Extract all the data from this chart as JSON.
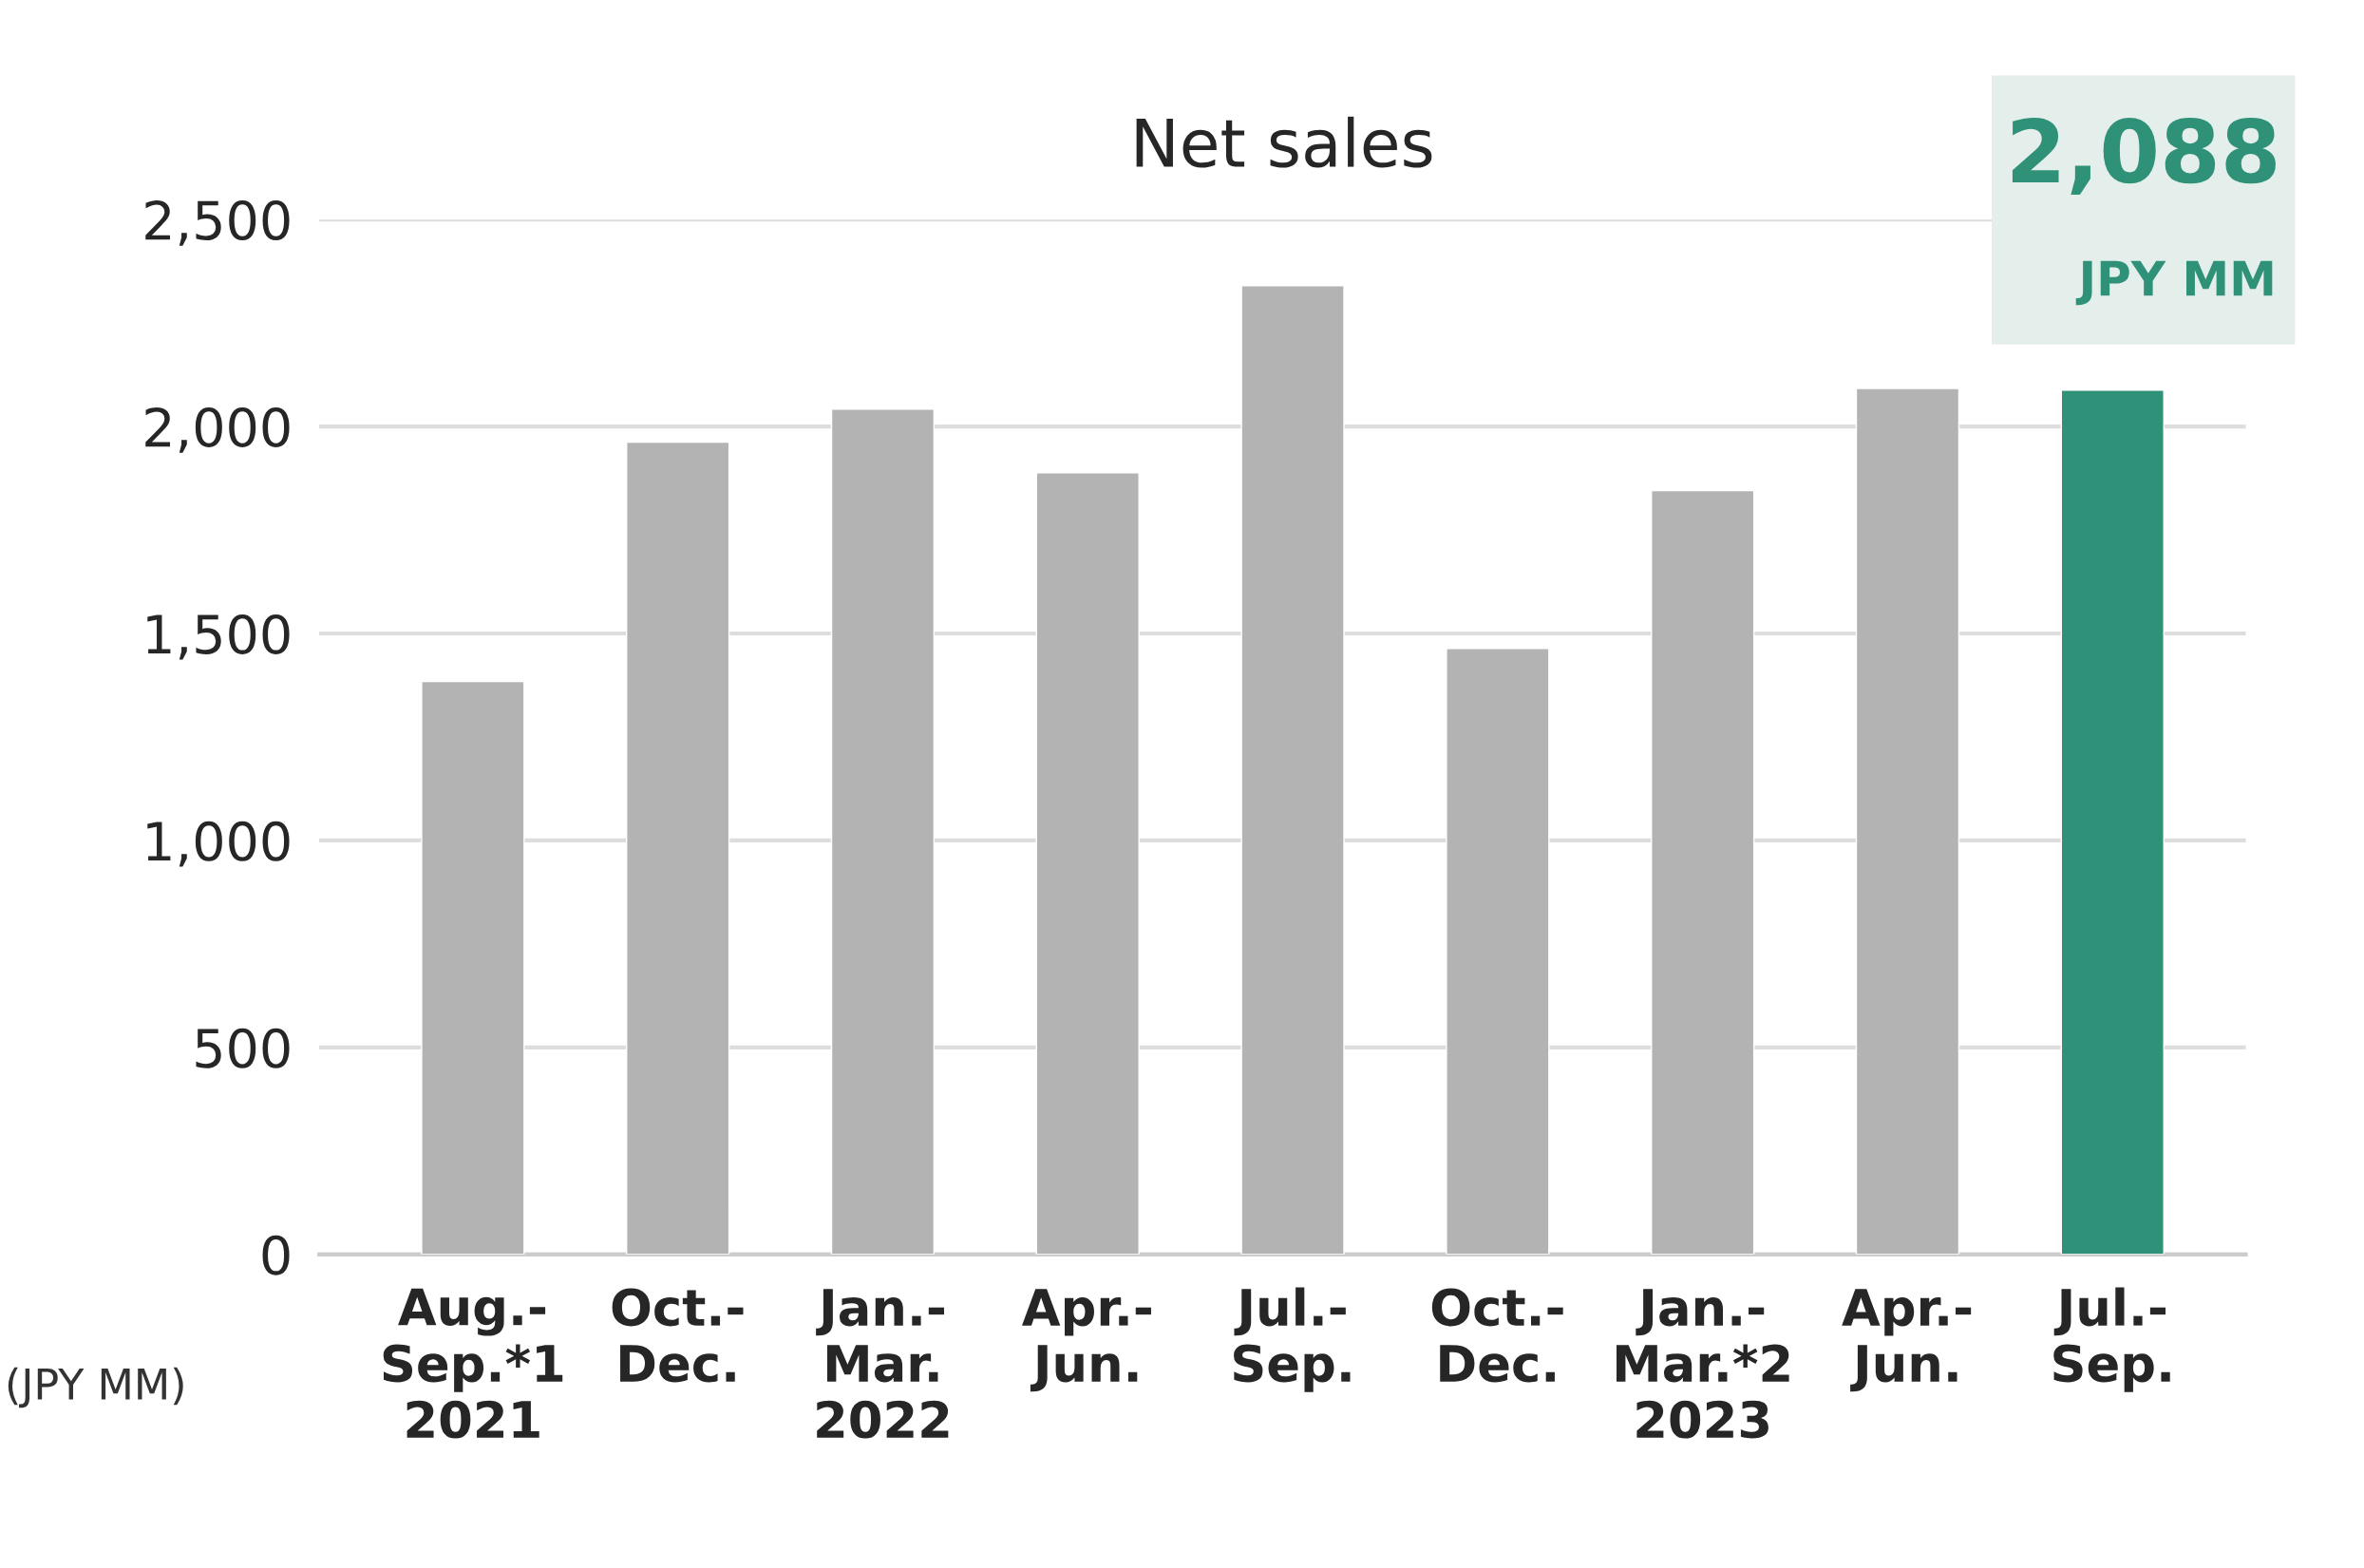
{
  "chart_data": {
    "type": "bar",
    "title": "Net sales",
    "ylabel": "(JPY MM)",
    "categories": [
      "Aug.-\nSep.*1\n2021",
      "Oct.-\nDec.",
      "Jan.-\nMar.\n2022",
      "Apr.-\nJun.",
      "Jul.-\nSep.",
      "Oct.-\nDec.",
      "Jan.-\nMar.*2\n2023",
      "Apr.-\nJun.",
      "Jul.-\nSep."
    ],
    "values": [
      1384,
      1962,
      2042,
      1888,
      2340,
      1464,
      1845,
      2092,
      2088
    ],
    "colors": [
      "#b3b3b3",
      "#b3b3b3",
      "#b3b3b3",
      "#b3b3b3",
      "#b3b3b3",
      "#b3b3b3",
      "#b3b3b3",
      "#b3b3b3",
      "#2e9178"
    ],
    "value_labels": [
      null,
      null,
      null,
      null,
      null,
      null,
      null,
      null,
      "2,088"
    ],
    "annotations": [
      "JPY MM"
    ],
    "ylim": [
      0,
      2500
    ],
    "yticks": [
      {
        "value": 0,
        "label": "0"
      },
      {
        "value": 500,
        "label": "500"
      },
      {
        "value": 1000,
        "label": "1,000"
      },
      {
        "value": 1500,
        "label": "1,500"
      },
      {
        "value": 2000,
        "label": "2,000"
      },
      {
        "value": 2500,
        "label": "2,500"
      }
    ],
    "grid": "y",
    "legend": false
  }
}
